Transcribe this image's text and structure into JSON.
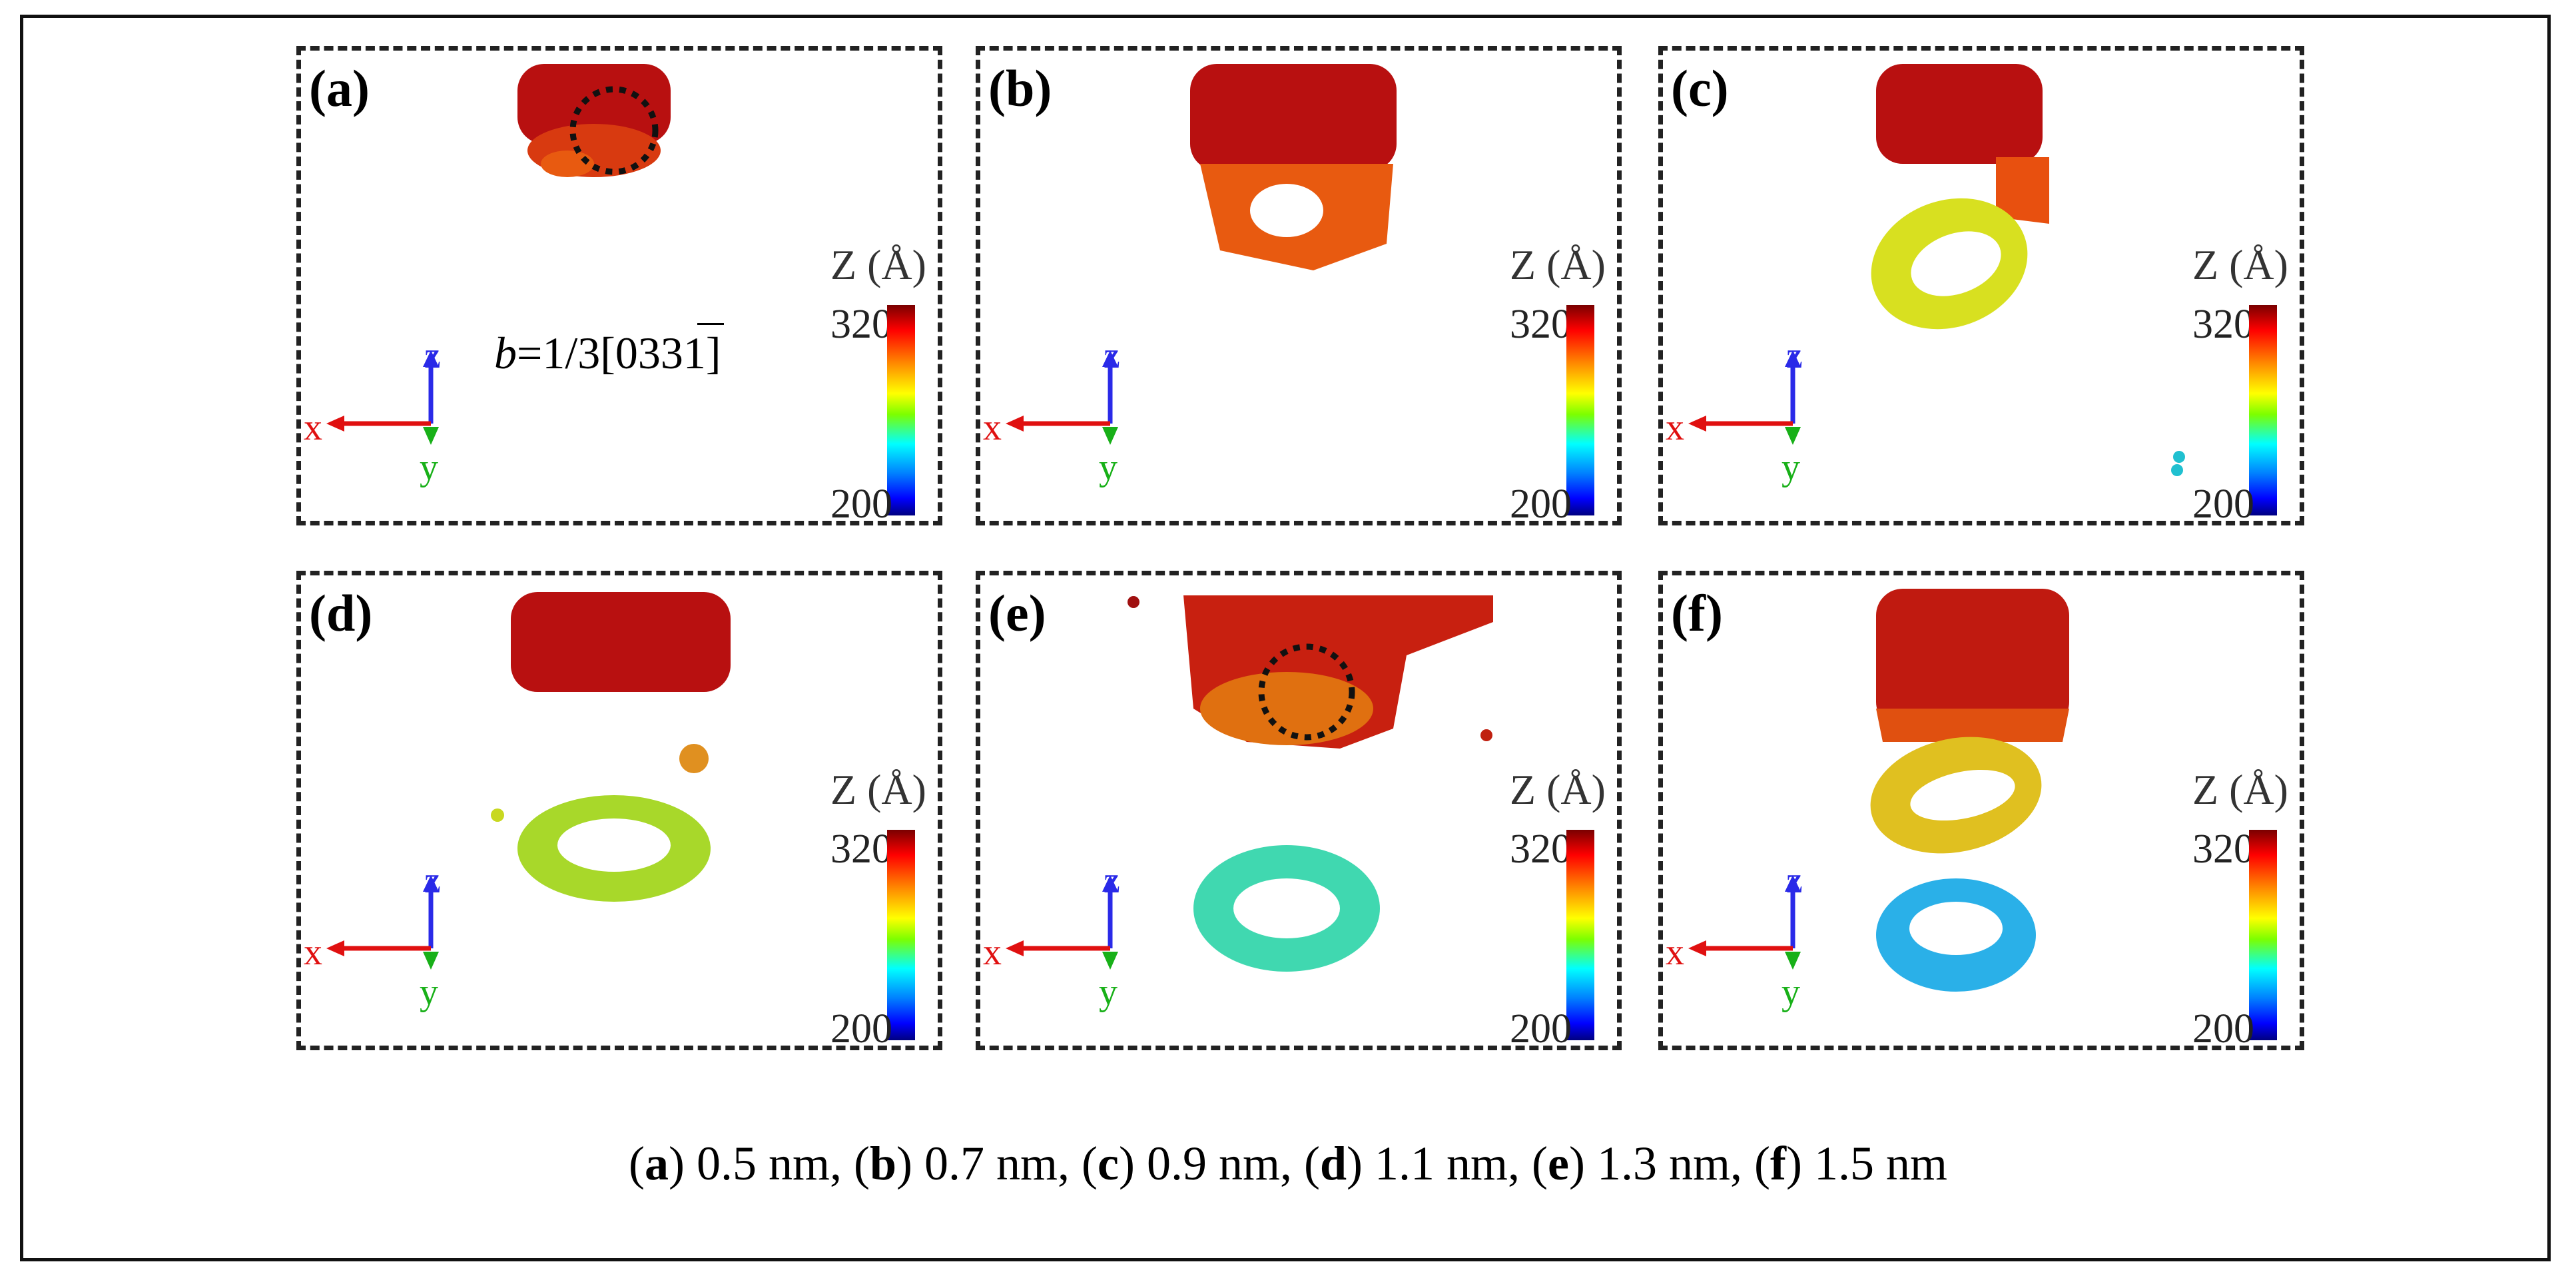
{
  "panels": [
    {
      "label": "(a)",
      "burgers_prefix": "b",
      "burgers_vector": "=1/3[0331]"
    },
    {
      "label": "(b)"
    },
    {
      "label": "(c)"
    },
    {
      "label": "(d)"
    },
    {
      "label": "(e)"
    },
    {
      "label": "(f)"
    }
  ],
  "colorbar": {
    "title": "Z (Å)",
    "max": "320",
    "min": "200"
  },
  "axes": {
    "x": "x",
    "y": "y",
    "z": "z"
  },
  "caption": [
    {
      "label": "a",
      "value": "0.5 nm"
    },
    {
      "label": "b",
      "value": "0.7 nm"
    },
    {
      "label": "c",
      "value": "0.9 nm"
    },
    {
      "label": "d",
      "value": "1.1 nm"
    },
    {
      "label": "e",
      "value": "1.3 nm"
    },
    {
      "label": "f",
      "value": "1.5 nm"
    }
  ],
  "colors": {
    "arrow_x": "#e01010",
    "arrow_z": "#2a2ae8",
    "arrow_y": "#18b018"
  }
}
